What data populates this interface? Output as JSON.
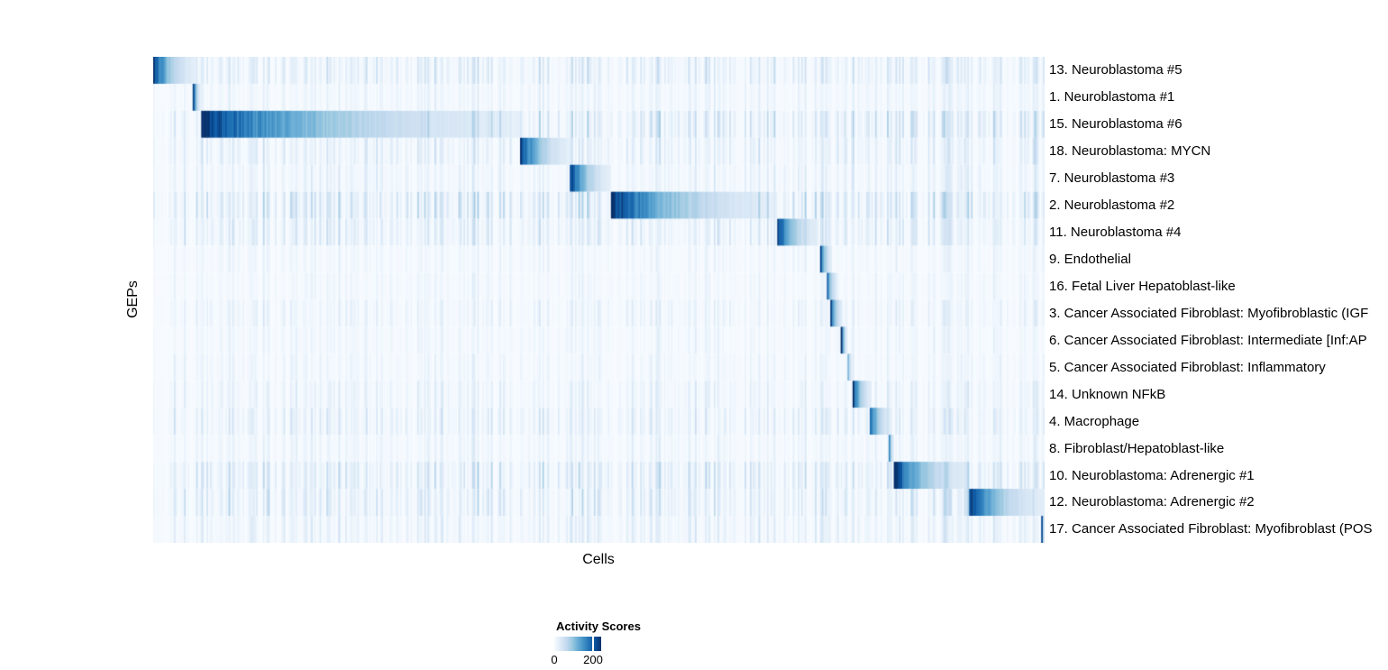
{
  "figure": {
    "xlabel": "Cells",
    "ylabel": "GEPs"
  },
  "legend": {
    "title": "Activity Scores",
    "min_label": "0",
    "tick_label": "200",
    "tick_position": 0.82
  },
  "chart_data": {
    "type": "heatmap",
    "title": "",
    "xlabel": "Cells",
    "ylabel": "GEPs",
    "x_axis": {
      "label": "Cells",
      "tick_labels_shown": false
    },
    "color_scale": {
      "title": "Activity Scores",
      "min": 0,
      "labeled_tick": 200,
      "colormap": "Blues",
      "colormap_stops": [
        "#F7FBFF",
        "#DEEBF7",
        "#C6DBEF",
        "#9ECAE1",
        "#6BAED6",
        "#4292C6",
        "#2171B5",
        "#08519C",
        "#08306B"
      ]
    },
    "rows": [
      {
        "label": "13. Neuroblastoma #5",
        "block_start": 0.0,
        "block_end": 0.048,
        "background_stripe_level": 0.2
      },
      {
        "label": "1. Neuroblastoma #1",
        "block_start": 0.045,
        "block_end": 0.053,
        "background_stripe_level": 0.1
      },
      {
        "label": "15. Neuroblastoma #6",
        "block_start": 0.053,
        "block_end": 0.412,
        "background_stripe_level": 0.26
      },
      {
        "label": "18. Neuroblastoma: MYCN",
        "block_start": 0.412,
        "block_end": 0.467,
        "background_stripe_level": 0.18
      },
      {
        "label": "7. Neuroblastoma #3",
        "block_start": 0.467,
        "block_end": 0.514,
        "background_stripe_level": 0.13
      },
      {
        "label": "2. Neuroblastoma #2",
        "block_start": 0.514,
        "block_end": 0.7,
        "background_stripe_level": 0.3
      },
      {
        "label": "11. Neuroblastoma #4",
        "block_start": 0.7,
        "block_end": 0.746,
        "background_stripe_level": 0.2
      },
      {
        "label": "9. Endothelial",
        "block_start": 0.748,
        "block_end": 0.762,
        "background_stripe_level": 0.08
      },
      {
        "label": "16. Fetal Liver Hepatoblast-like",
        "block_start": 0.755,
        "block_end": 0.768,
        "background_stripe_level": 0.08
      },
      {
        "label": "3. Cancer Associated Fibroblast: Myofibroblastic (IGF",
        "block_start": 0.76,
        "block_end": 0.774,
        "background_stripe_level": 0.12
      },
      {
        "label": "6. Cancer Associated Fibroblast: Intermediate [Inf:AP",
        "block_start": 0.772,
        "block_end": 0.779,
        "background_stripe_level": 0.08
      },
      {
        "label": "5. Cancer Associated Fibroblast: Inflammatory",
        "block_start": 0.778,
        "block_end": 0.784,
        "background_stripe_level": 0.09
      },
      {
        "label": "14. Unknown NFkB",
        "block_start": 0.785,
        "block_end": 0.806,
        "background_stripe_level": 0.13
      },
      {
        "label": "4. Macrophage",
        "block_start": 0.803,
        "block_end": 0.828,
        "background_stripe_level": 0.18
      },
      {
        "label": "8. Fibroblast/Hepatoblast-like",
        "block_start": 0.825,
        "block_end": 0.831,
        "background_stripe_level": 0.1
      },
      {
        "label": "10. Neuroblastoma: Adrenergic #1",
        "block_start": 0.831,
        "block_end": 0.916,
        "background_stripe_level": 0.24
      },
      {
        "label": "12. Neuroblastoma: Adrenergic #2",
        "block_start": 0.915,
        "block_end": 1.0,
        "background_stripe_level": 0.22
      },
      {
        "label": "17. Cancer Associated Fibroblast: Myofibroblast (POS",
        "block_start": 0.997,
        "block_end": 1.0,
        "background_stripe_level": 0.15
      }
    ]
  }
}
